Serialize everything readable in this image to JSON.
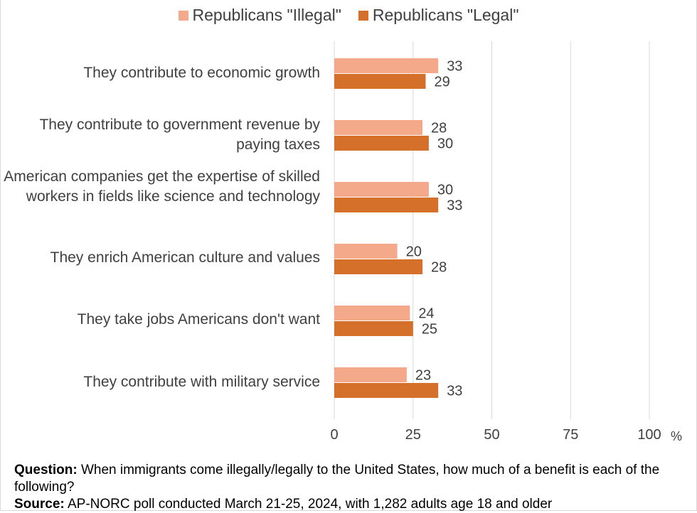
{
  "legend": {
    "illegal": "Republicans \"Illegal\"",
    "legal": "Republicans \"Legal\""
  },
  "colors": {
    "illegal": "#f4a98a",
    "legal": "#d4702a",
    "grid": "#d9d9d9",
    "text": "#404040"
  },
  "chart_data": {
    "type": "bar",
    "orientation": "horizontal",
    "categories": [
      "They contribute to economic growth",
      "They contribute to government revenue by paying taxes",
      "American companies get the expertise of skilled workers in fields like science and technology",
      "They enrich American culture and values",
      "They take jobs Americans don't want",
      "They contribute with military service"
    ],
    "series": [
      {
        "name": "Republicans \"Illegal\"",
        "values": [
          33,
          28,
          30,
          20,
          24,
          23
        ]
      },
      {
        "name": "Republicans \"Legal\"",
        "values": [
          29,
          30,
          33,
          28,
          25,
          33
        ]
      }
    ],
    "xlim": [
      0,
      100
    ],
    "xticks": [
      "0",
      "25",
      "50",
      "75",
      "100"
    ],
    "xunit": "%",
    "grid": true,
    "legend_position": "top"
  },
  "footer": {
    "question_label": "Question:",
    "question_text": " When immigrants come illegally/legally to the United States, how much of a benefit is each of the following?",
    "source_label": "Source:",
    "source_text": " AP-NORC poll conducted March 21-25, 2024, with 1,282 adults age 18 and older"
  }
}
